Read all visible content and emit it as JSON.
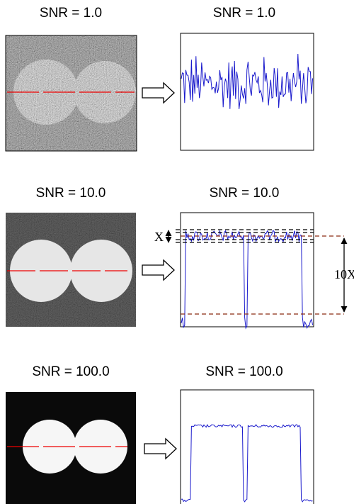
{
  "panels": [
    {
      "image_label": "SNR = 1.0",
      "profile_label": "SNR = 1.0"
    },
    {
      "image_label": "SNR = 10.0",
      "profile_label": "SNR = 10.0"
    },
    {
      "image_label": "SNR = 100.0",
      "profile_label": "SNR = 100.0"
    }
  ],
  "annotations": {
    "x_marker": "X",
    "range_marker": "10X"
  }
}
